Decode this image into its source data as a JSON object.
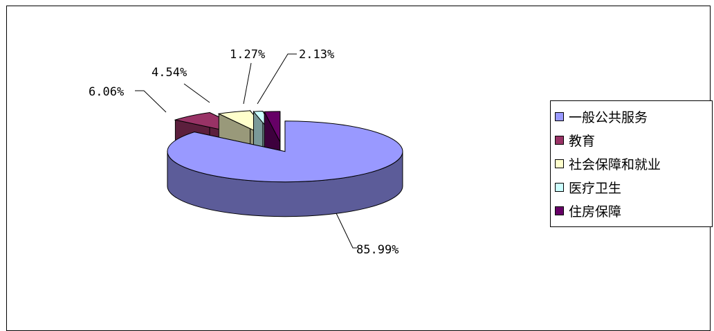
{
  "chart_data": {
    "type": "pie",
    "title": "",
    "slices": [
      {
        "name": "一般公共服务",
        "value": 85.99,
        "label": "85.99%",
        "color": "#9999ff",
        "side": "#5c5c99"
      },
      {
        "name": "教育",
        "value": 6.06,
        "label": "6.06%",
        "color": "#993366",
        "side": "#5c1f3d"
      },
      {
        "name": "社会保障和就业",
        "value": 4.54,
        "label": "4.54%",
        "color": "#ffffcc",
        "side": "#99997a"
      },
      {
        "name": "医疗卫生",
        "value": 1.27,
        "label": "1.27%",
        "color": "#ccffff",
        "side": "#7a9999"
      },
      {
        "name": "住房保障",
        "value": 2.13,
        "label": "2.13%",
        "color": "#660066",
        "side": "#3d003d"
      }
    ],
    "legend_position": "right",
    "exploded": true,
    "three_d": true
  }
}
